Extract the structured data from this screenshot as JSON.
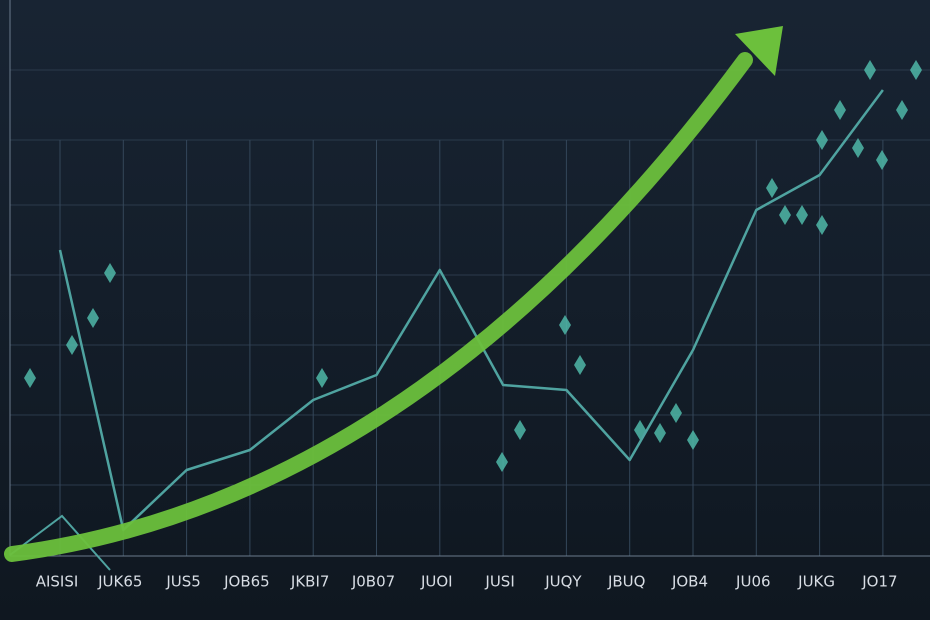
{
  "chart_data": {
    "type": "line",
    "categories": [
      "AISISI",
      "JUK65",
      "JUS5",
      "JOB65",
      "JKBI7",
      "J0B07",
      "JUOI",
      "JUSI",
      "JUQY",
      "JBUQ",
      "JOB4",
      "JU06",
      "JUKG",
      "JO17"
    ],
    "series": [
      {
        "color": "#4fa3a0",
        "values": [
          61,
          5,
          17,
          21,
          31,
          36,
          57,
          34,
          33,
          19,
          41,
          69,
          76,
          93
        ]
      }
    ],
    "ylim": [
      0,
      111
    ]
  }
}
